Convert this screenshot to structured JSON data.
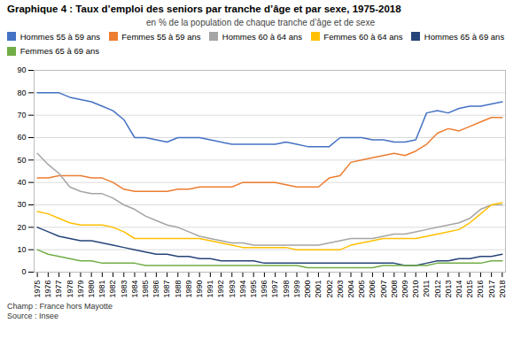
{
  "chart_data": {
    "type": "line",
    "title": "Graphique 4 : Taux d’emploi des seniors par tranche d’âge et par sexe, 1975-2018",
    "subtitle": "en % de la population de chaque tranche d’âge et de sexe",
    "annotations": [
      "Champ : France hors Mayotte",
      "Source : Insee"
    ],
    "x": [
      1975,
      1976,
      1977,
      1978,
      1979,
      1980,
      1981,
      1982,
      1983,
      1984,
      1985,
      1986,
      1987,
      1988,
      1989,
      1990,
      1991,
      1992,
      1993,
      1994,
      1995,
      1996,
      1997,
      1998,
      1999,
      2000,
      2001,
      2002,
      2003,
      2004,
      2005,
      2006,
      2007,
      2008,
      2009,
      2010,
      2011,
      2012,
      2013,
      2014,
      2015,
      2016,
      2017,
      2018
    ],
    "xlim": [
      1974.7,
      2018.3
    ],
    "xticks": [
      1975,
      1976,
      1977,
      1978,
      1979,
      1980,
      1981,
      1982,
      1983,
      1984,
      1985,
      1986,
      1987,
      1988,
      1989,
      1990,
      1991,
      1992,
      1993,
      1994,
      1995,
      1996,
      1997,
      1998,
      1999,
      2000,
      2001,
      2002,
      2003,
      2004,
      2005,
      2006,
      2007,
      2008,
      2009,
      2010,
      2011,
      2012,
      2013,
      2014,
      2015,
      2016,
      2017,
      2018
    ],
    "series": [
      {
        "name": "Hommes 55 à 59 ans",
        "color": "#4472C4",
        "values": [
          80,
          80,
          80,
          78,
          77,
          76,
          74,
          72,
          68,
          60,
          60,
          59,
          58,
          60,
          60,
          60,
          59,
          58,
          57,
          57,
          57,
          57,
          57,
          58,
          57,
          56,
          56,
          56,
          60,
          60,
          60,
          59,
          59,
          58,
          58,
          59,
          71,
          72,
          71,
          73,
          74,
          74,
          75,
          76
        ]
      },
      {
        "name": "Femmes 55 à 59 ans",
        "color": "#ED7D31",
        "values": [
          42,
          42,
          43,
          43,
          43,
          42,
          42,
          40,
          37,
          36,
          36,
          36,
          36,
          37,
          37,
          38,
          38,
          38,
          38,
          40,
          40,
          40,
          40,
          39,
          38,
          38,
          38,
          42,
          43,
          49,
          50,
          51,
          52,
          53,
          52,
          54,
          57,
          62,
          64,
          63,
          65,
          67,
          69,
          69
        ]
      },
      {
        "name": "Hommes 60 à 64 ans",
        "color": "#A5A5A5",
        "values": [
          53,
          48,
          44,
          38,
          36,
          35,
          35,
          33,
          30,
          28,
          25,
          23,
          21,
          20,
          18,
          16,
          15,
          14,
          13,
          13,
          12,
          12,
          12,
          12,
          12,
          12,
          12,
          13,
          14,
          15,
          15,
          15,
          16,
          17,
          17,
          18,
          19,
          20,
          21,
          22,
          24,
          28,
          30,
          30
        ]
      },
      {
        "name": "Femmes 60 à 64 ans",
        "color": "#FFC000",
        "values": [
          27,
          26,
          24,
          22,
          21,
          21,
          21,
          20,
          18,
          15,
          15,
          15,
          15,
          15,
          15,
          15,
          14,
          13,
          12,
          11,
          11,
          11,
          11,
          11,
          10,
          10,
          10,
          10,
          10,
          12,
          13,
          14,
          15,
          15,
          15,
          15,
          16,
          17,
          18,
          19,
          22,
          26,
          30,
          31
        ]
      },
      {
        "name": "Hommes 65 à 69 ans",
        "color": "#264478",
        "values": [
          20,
          18,
          16,
          15,
          14,
          14,
          13,
          12,
          11,
          10,
          9,
          8,
          8,
          7,
          7,
          6,
          6,
          5,
          5,
          5,
          5,
          4,
          4,
          4,
          4,
          4,
          4,
          4,
          4,
          4,
          4,
          4,
          4,
          4,
          3,
          3,
          4,
          5,
          5,
          6,
          6,
          7,
          7,
          8
        ]
      },
      {
        "name": "Femmes 65 à 69 ans",
        "color": "#70AD47",
        "values": [
          10,
          8,
          7,
          6,
          5,
          5,
          4,
          4,
          4,
          4,
          3,
          3,
          3,
          3,
          3,
          3,
          3,
          3,
          3,
          3,
          3,
          3,
          3,
          3,
          3,
          2,
          2,
          2,
          2,
          2,
          2,
          2,
          3,
          3,
          3,
          3,
          3,
          4,
          4,
          4,
          4,
          4,
          5,
          5
        ]
      }
    ],
    "ylim": [
      0,
      90
    ],
    "yticks": [
      0,
      10,
      20,
      30,
      40,
      50,
      60,
      70,
      80,
      90
    ],
    "grid": true,
    "legend": "top"
  }
}
